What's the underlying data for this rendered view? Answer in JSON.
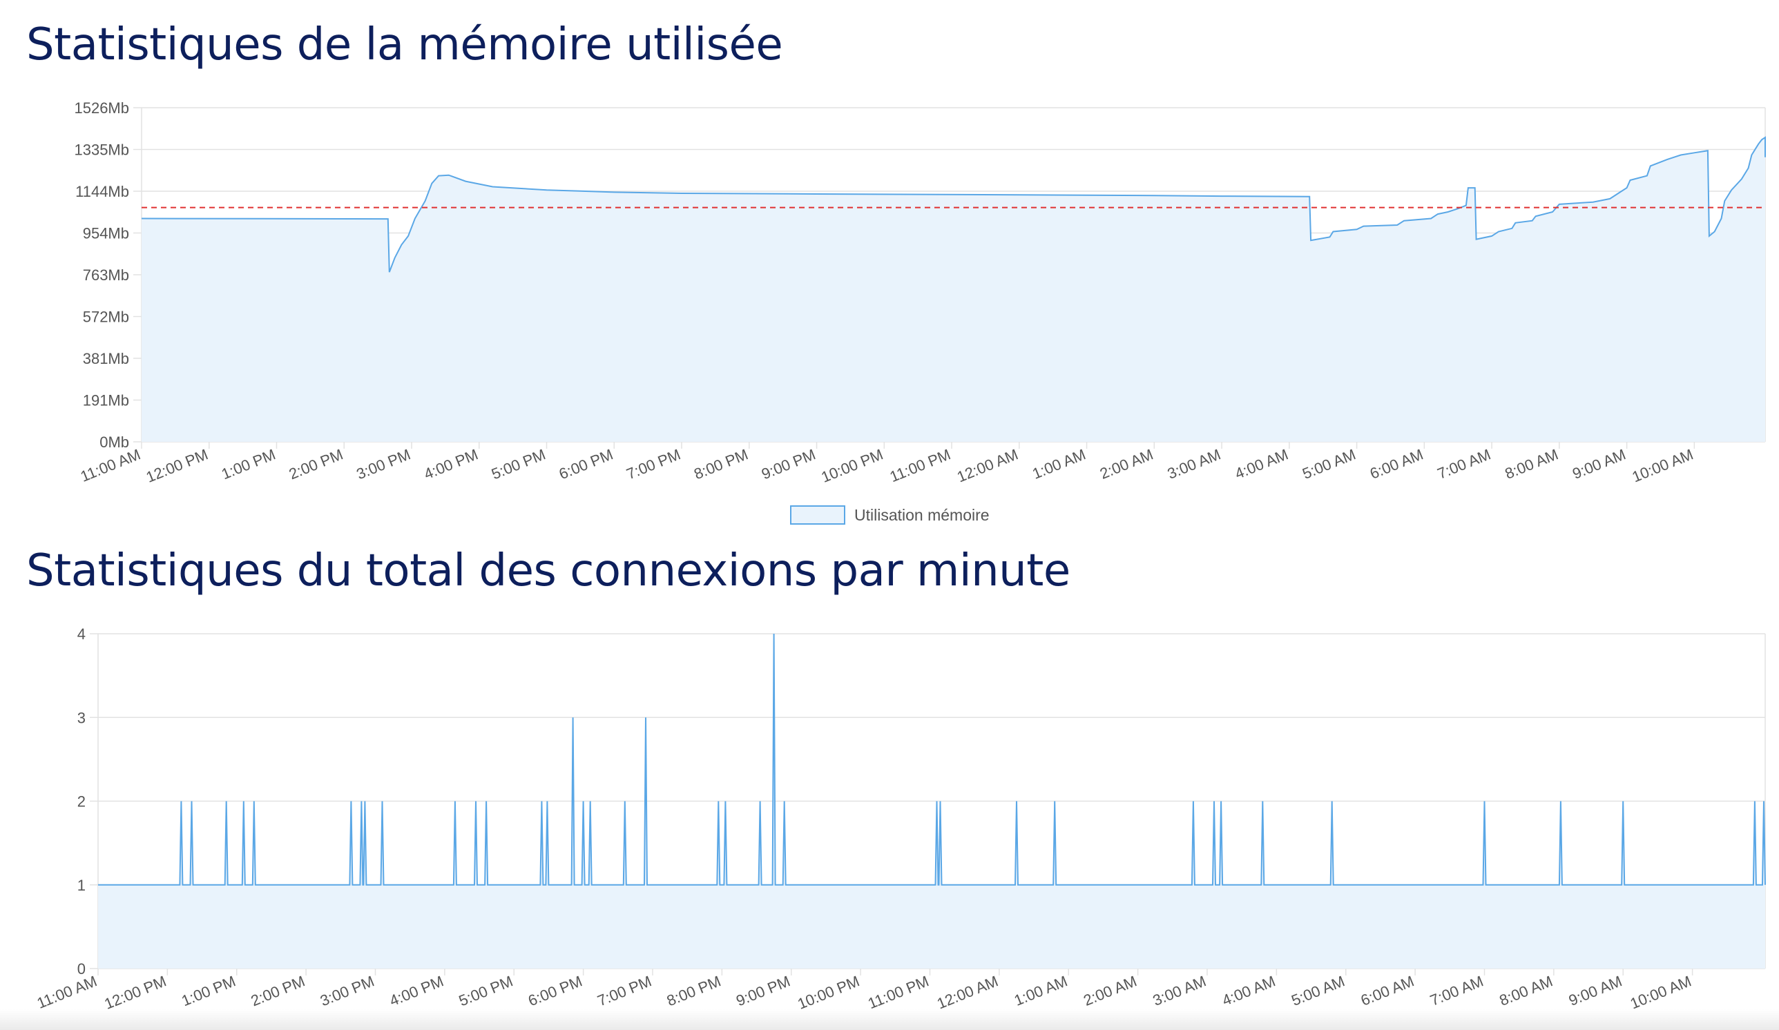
{
  "sections": {
    "memory_title": "Statistiques de la mémoire utilisée",
    "connections_title": "Statistiques du total des connexions par minute"
  },
  "colors": {
    "line": "#5aa7e6",
    "fill": "#e9f3fc",
    "threshold": "#e03030",
    "grid": "#e2e2e2",
    "title": "#0d1f5c",
    "tick": "#555555"
  },
  "chart_data": [
    {
      "type": "area",
      "title": "Statistiques de la mémoire utilisée",
      "ylim": [
        0,
        1526
      ],
      "y_ticks": [
        "0Mb",
        "191Mb",
        "381Mb",
        "572Mb",
        "763Mb",
        "954Mb",
        "1144Mb",
        "1335Mb",
        "1526Mb"
      ],
      "x_ticks": [
        "11:00 AM",
        "12:00 PM",
        "1:00 PM",
        "2:00 PM",
        "3:00 PM",
        "4:00 PM",
        "5:00 PM",
        "6:00 PM",
        "7:00 PM",
        "8:00 PM",
        "9:00 PM",
        "10:00 PM",
        "11:00 PM",
        "12:00 AM",
        "1:00 AM",
        "2:00 AM",
        "3:00 AM",
        "4:00 AM",
        "5:00 AM",
        "6:00 AM",
        "7:00 AM",
        "8:00 AM",
        "9:00 AM",
        "10:00 AM"
      ],
      "x_units": "hours from 11:00 AM",
      "x_range": [
        0,
        24.05
      ],
      "threshold_line": 1070,
      "grid": true,
      "legend_position": "bottom",
      "series": [
        {
          "name": "Utilisation mémoire",
          "points": [
            [
              0,
              1020
            ],
            [
              3.65,
              1018
            ],
            [
              3.67,
              775
            ],
            [
              3.75,
              840
            ],
            [
              3.85,
              900
            ],
            [
              3.95,
              940
            ],
            [
              4.05,
              1020
            ],
            [
              4.2,
              1100
            ],
            [
              4.3,
              1180
            ],
            [
              4.4,
              1215
            ],
            [
              4.55,
              1218
            ],
            [
              4.8,
              1190
            ],
            [
              5.2,
              1165
            ],
            [
              6,
              1150
            ],
            [
              6.5,
              1145
            ],
            [
              7,
              1140
            ],
            [
              8,
              1135
            ],
            [
              10,
              1132
            ],
            [
              13,
              1128
            ],
            [
              15,
              1125
            ],
            [
              16,
              1122
            ],
            [
              17.3,
              1120
            ],
            [
              17.32,
              920
            ],
            [
              17.6,
              935
            ],
            [
              17.65,
              960
            ],
            [
              18,
              970
            ],
            [
              18.1,
              985
            ],
            [
              18.6,
              990
            ],
            [
              18.7,
              1010
            ],
            [
              19.1,
              1020
            ],
            [
              19.2,
              1040
            ],
            [
              19.35,
              1050
            ],
            [
              19.5,
              1065
            ],
            [
              19.62,
              1080
            ],
            [
              19.65,
              1160
            ],
            [
              19.75,
              1160
            ],
            [
              19.77,
              925
            ],
            [
              20,
              940
            ],
            [
              20.1,
              960
            ],
            [
              20.3,
              975
            ],
            [
              20.35,
              1000
            ],
            [
              20.6,
              1010
            ],
            [
              20.65,
              1030
            ],
            [
              20.9,
              1050
            ],
            [
              21,
              1085
            ],
            [
              21.5,
              1095
            ],
            [
              21.75,
              1110
            ],
            [
              21.9,
              1140
            ],
            [
              22,
              1160
            ],
            [
              22.05,
              1195
            ],
            [
              22.3,
              1215
            ],
            [
              22.35,
              1260
            ],
            [
              22.6,
              1290
            ],
            [
              22.8,
              1310
            ],
            [
              23.0,
              1320
            ],
            [
              23.2,
              1330
            ],
            [
              23.22,
              940
            ],
            [
              23.3,
              960
            ],
            [
              23.4,
              1020
            ],
            [
              23.45,
              1100
            ],
            [
              23.55,
              1150
            ],
            [
              23.7,
              1200
            ],
            [
              23.8,
              1250
            ],
            [
              23.85,
              1310
            ],
            [
              23.95,
              1360
            ],
            [
              24.0,
              1380
            ],
            [
              24.15,
              1390
            ],
            [
              24.3,
              1380
            ],
            [
              24.45,
              1360
            ],
            [
              24.55,
              1345
            ],
            [
              24.7,
              1320
            ],
            [
              24.9,
              1310
            ],
            [
              25.0,
              1300
            ]
          ]
        }
      ]
    },
    {
      "type": "area",
      "title": "Statistiques du total des connexions par minute",
      "ylim": [
        0,
        4
      ],
      "y_ticks": [
        "0",
        "1",
        "2",
        "3",
        "4"
      ],
      "x_ticks": [
        "11:00 AM",
        "12:00 PM",
        "1:00 PM",
        "2:00 PM",
        "3:00 PM",
        "4:00 PM",
        "5:00 PM",
        "6:00 PM",
        "7:00 PM",
        "8:00 PM",
        "9:00 PM",
        "10:00 PM",
        "11:00 PM",
        "12:00 AM",
        "1:00 AM",
        "2:00 AM",
        "3:00 AM",
        "4:00 AM",
        "5:00 AM",
        "6:00 AM",
        "7:00 AM",
        "8:00 AM",
        "9:00 AM",
        "10:00 AM"
      ],
      "x_units": "hours from 11:00 AM",
      "x_range": [
        0,
        24.05
      ],
      "grid": true,
      "baseline": 1,
      "series": [
        {
          "spikes": [
            [
              1.2,
              2
            ],
            [
              1.35,
              2
            ],
            [
              1.85,
              2
            ],
            [
              2.1,
              2
            ],
            [
              2.25,
              2
            ],
            [
              3.65,
              2
            ],
            [
              3.8,
              2
            ],
            [
              3.85,
              2
            ],
            [
              4.1,
              2
            ],
            [
              5.15,
              2
            ],
            [
              5.45,
              2
            ],
            [
              5.6,
              2
            ],
            [
              6.4,
              2
            ],
            [
              6.48,
              2
            ],
            [
              6.85,
              3
            ],
            [
              7.0,
              2
            ],
            [
              7.1,
              2
            ],
            [
              7.6,
              2
            ],
            [
              7.9,
              3
            ],
            [
              8.95,
              2
            ],
            [
              9.05,
              2
            ],
            [
              9.55,
              2
            ],
            [
              9.75,
              4
            ],
            [
              9.9,
              2
            ],
            [
              12.1,
              2
            ],
            [
              12.15,
              2
            ],
            [
              13.25,
              2
            ],
            [
              13.8,
              2
            ],
            [
              15.8,
              2
            ],
            [
              16.1,
              2
            ],
            [
              16.2,
              2
            ],
            [
              16.8,
              2
            ],
            [
              17.8,
              2
            ],
            [
              20.0,
              2
            ],
            [
              21.1,
              2
            ],
            [
              22.0,
              2
            ],
            [
              23.9,
              2
            ],
            [
              24.05,
              2
            ]
          ]
        }
      ]
    }
  ]
}
